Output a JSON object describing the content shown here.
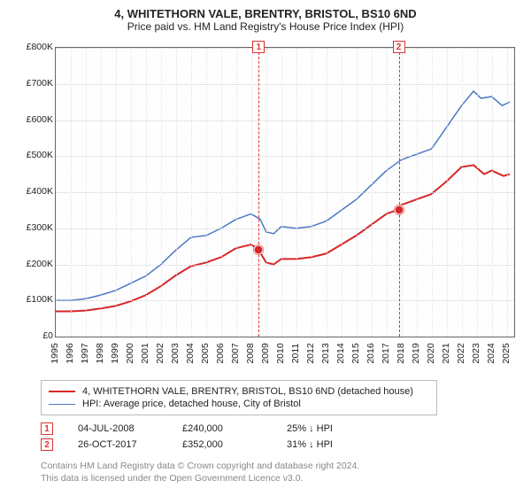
{
  "title": "4, WHITETHORN VALE, BRENTRY, BRISTOL, BS10 6ND",
  "subtitle": "Price paid vs. HM Land Registry's House Price Index (HPI)",
  "chart": {
    "type": "line",
    "xlim": [
      1995,
      2025.5
    ],
    "ylim": [
      0,
      800000
    ],
    "ytick_step": 100000,
    "yticks": [
      "£0",
      "£100K",
      "£200K",
      "£300K",
      "£400K",
      "£500K",
      "£600K",
      "£700K",
      "£800K"
    ],
    "xticks": [
      1995,
      1996,
      1997,
      1998,
      1999,
      2000,
      2001,
      2002,
      2003,
      2004,
      2005,
      2006,
      2007,
      2008,
      2009,
      2010,
      2011,
      2012,
      2013,
      2014,
      2015,
      2016,
      2017,
      2018,
      2019,
      2020,
      2021,
      2022,
      2023,
      2024,
      2025
    ],
    "background_color": "#ffffff",
    "grid_color": "#d0d0d0",
    "axis_fontsize": 10.5,
    "series": [
      {
        "name": "property",
        "label": "4, WHITETHORN VALE, BRENTRY, BRISTOL, BS10 6ND (detached house)",
        "color": "#d62728",
        "line_width": 2,
        "data": [
          [
            1995,
            70000
          ],
          [
            1996,
            70000
          ],
          [
            1997,
            72000
          ],
          [
            1998,
            78000
          ],
          [
            1999,
            85000
          ],
          [
            2000,
            98000
          ],
          [
            2001,
            115000
          ],
          [
            2002,
            140000
          ],
          [
            2003,
            170000
          ],
          [
            2004,
            195000
          ],
          [
            2005,
            205000
          ],
          [
            2006,
            220000
          ],
          [
            2007,
            245000
          ],
          [
            2008,
            255000
          ],
          [
            2008.5,
            240000
          ],
          [
            2009,
            205000
          ],
          [
            2009.5,
            200000
          ],
          [
            2010,
            215000
          ],
          [
            2011,
            215000
          ],
          [
            2012,
            220000
          ],
          [
            2013,
            230000
          ],
          [
            2014,
            255000
          ],
          [
            2015,
            280000
          ],
          [
            2016,
            310000
          ],
          [
            2017,
            340000
          ],
          [
            2017.8,
            352000
          ],
          [
            2018,
            365000
          ],
          [
            2019,
            380000
          ],
          [
            2020,
            395000
          ],
          [
            2021,
            430000
          ],
          [
            2022,
            470000
          ],
          [
            2022.8,
            475000
          ],
          [
            2023.5,
            450000
          ],
          [
            2024,
            460000
          ],
          [
            2024.8,
            445000
          ],
          [
            2025.2,
            450000
          ]
        ]
      },
      {
        "name": "hpi",
        "label": "HPI: Average price, detached house, City of Bristol",
        "color": "#4a78c4",
        "line_width": 1.5,
        "data": [
          [
            1995,
            100000
          ],
          [
            1996,
            100000
          ],
          [
            1997,
            105000
          ],
          [
            1998,
            115000
          ],
          [
            1999,
            128000
          ],
          [
            2000,
            148000
          ],
          [
            2001,
            168000
          ],
          [
            2002,
            200000
          ],
          [
            2003,
            240000
          ],
          [
            2004,
            275000
          ],
          [
            2005,
            280000
          ],
          [
            2006,
            300000
          ],
          [
            2007,
            325000
          ],
          [
            2008,
            340000
          ],
          [
            2008.6,
            325000
          ],
          [
            2009,
            290000
          ],
          [
            2009.5,
            285000
          ],
          [
            2010,
            305000
          ],
          [
            2011,
            300000
          ],
          [
            2012,
            305000
          ],
          [
            2013,
            320000
          ],
          [
            2014,
            350000
          ],
          [
            2015,
            380000
          ],
          [
            2016,
            420000
          ],
          [
            2017,
            460000
          ],
          [
            2018,
            490000
          ],
          [
            2019,
            505000
          ],
          [
            2020,
            520000
          ],
          [
            2021,
            580000
          ],
          [
            2022,
            640000
          ],
          [
            2022.8,
            680000
          ],
          [
            2023.3,
            660000
          ],
          [
            2024,
            665000
          ],
          [
            2024.7,
            640000
          ],
          [
            2025.2,
            650000
          ]
        ]
      }
    ],
    "vlines": [
      {
        "n": "1",
        "x": 2008.5,
        "color": "#e03030"
      },
      {
        "n": "2",
        "x": 2017.82,
        "color": "#e03030"
      }
    ],
    "points": [
      {
        "x": 2008.5,
        "y": 240000
      },
      {
        "x": 2017.82,
        "y": 352000
      }
    ]
  },
  "legend": {
    "items": [
      {
        "color": "#d62728",
        "width": 2,
        "label_path": "chart.series.0.label"
      },
      {
        "color": "#4a78c4",
        "width": 1.5,
        "label_path": "chart.series.1.label"
      }
    ]
  },
  "notes": {
    "rows": [
      {
        "n": "1",
        "date": "04-JUL-2008",
        "price": "£240,000",
        "diff": "25% ↓ HPI"
      },
      {
        "n": "2",
        "date": "26-OCT-2017",
        "price": "£352,000",
        "diff": "31% ↓ HPI"
      }
    ]
  },
  "footer": {
    "line1": "Contains HM Land Registry data © Crown copyright and database right 2024.",
    "line2": "This data is licensed under the Open Government Licence v3.0."
  }
}
